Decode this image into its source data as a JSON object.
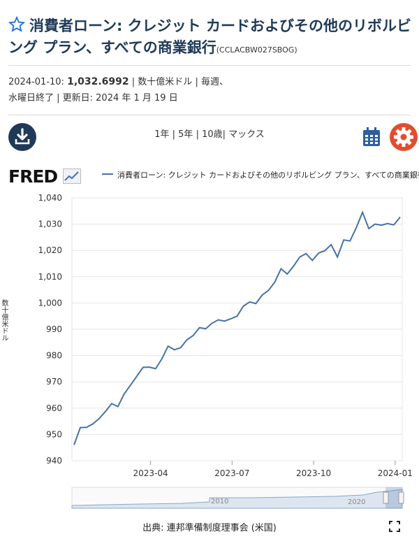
{
  "header": {
    "title": "消費者ローン: クレジット カードおよびその他のリボルビング プラン、すべての商業銀行",
    "series_id": "(CCLACBW027SBOG)",
    "star_icon": "star-outline-icon"
  },
  "meta": {
    "date_label": "2024-01-10:",
    "value": "1,032.6992",
    "units": "| 数十億米ドル | 毎週、",
    "freq": "水曜日終了 | 更新日: 2024 年 1 月 19 日"
  },
  "toolbar": {
    "download_icon": "download-icon",
    "ranges": [
      "1年",
      "5年",
      "10歳",
      "マックス"
    ],
    "calendar_icon": "calendar-icon",
    "settings_icon": "gear-icon"
  },
  "graph": {
    "logo": "FRED",
    "legend": "消費者ローン: クレジット カードおよびその他のリボルビング プラン、すべての商業銀行",
    "ylabel_partial": "数十億米ドル",
    "source": "出典: 連邦準備制度理事会 (米国)",
    "fullscreen_icon": "fullscreen-icon",
    "navigator_labels": [
      "2010",
      "2020"
    ],
    "line_color": "#4572a7"
  },
  "chart_data": {
    "type": "line",
    "x_ticks": [
      "2023-04",
      "2023-07",
      "2023-10",
      "2024-01"
    ],
    "y_ticks": [
      "940",
      "950",
      "960",
      "970",
      "980",
      "990",
      "1,000",
      "1,010",
      "1,020",
      "1,030",
      "1,040"
    ],
    "ylim": [
      940,
      1040
    ],
    "series": [
      {
        "values": [
          946.0,
          952.6,
          952.7,
          954.0,
          956.0,
          958.7,
          961.7,
          960.6,
          965.4,
          968.7,
          972.1,
          975.5,
          975.6,
          975.0,
          978.7,
          983.6,
          982.2,
          983.0,
          986.0,
          987.6,
          990.6,
          990.2,
          992.3,
          993.6,
          993.1,
          994.0,
          995.0,
          998.8,
          1000.4,
          999.8,
          1003.0,
          1004.8,
          1007.9,
          1013.0,
          1011.0,
          1014.0,
          1017.5,
          1018.8,
          1016.2,
          1019.0,
          1019.9,
          1022.2,
          1017.5,
          1024.0,
          1023.6,
          1028.6,
          1034.5,
          1028.3,
          1030.0,
          1029.6,
          1030.2,
          1029.7,
          1032.7
        ]
      }
    ]
  }
}
